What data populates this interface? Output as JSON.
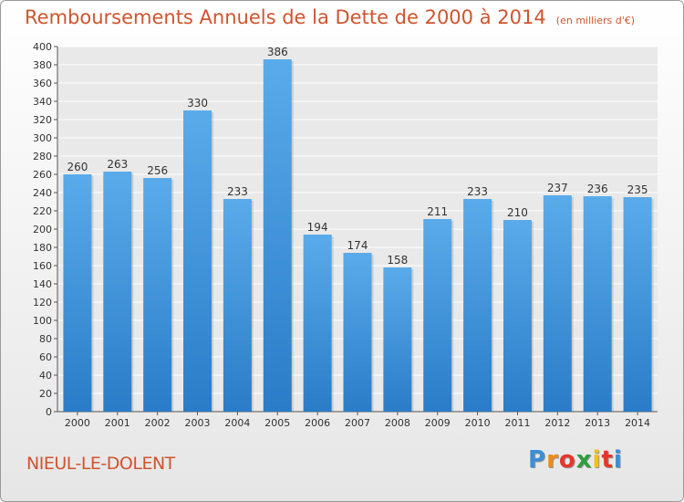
{
  "title": "Remboursements Annuels de la Dette de 2000 à 2014",
  "subtitle": "(en milliers d'€)",
  "city": "NIEUL-LE-DOLENT",
  "logo": {
    "letters": [
      "P",
      "r",
      "o",
      "x",
      "i",
      "t",
      "i"
    ],
    "colors": [
      "#3a8fd6",
      "#f08a1c",
      "#e8352b",
      "#2e9e3e",
      "#f2c20c",
      "#e8352b",
      "#3a8fd6"
    ]
  },
  "colors": {
    "bar_top": "#5aabea",
    "bar_bottom": "#2a7cc8",
    "text": "#d0542f"
  },
  "chart_data": {
    "type": "bar",
    "title": "Remboursements Annuels de la Dette de 2000 à 2014",
    "subtitle": "(en milliers d'€)",
    "xlabel": "",
    "ylabel": "",
    "ylim": [
      0,
      400
    ],
    "ytick_step": 20,
    "grid": true,
    "categories": [
      "2000",
      "2001",
      "2002",
      "2003",
      "2004",
      "2005",
      "2006",
      "2007",
      "2008",
      "2009",
      "2010",
      "2011",
      "2012",
      "2013",
      "2014"
    ],
    "values": [
      260,
      263,
      256,
      330,
      233,
      386,
      194,
      174,
      158,
      211,
      233,
      210,
      237,
      236,
      235
    ]
  }
}
